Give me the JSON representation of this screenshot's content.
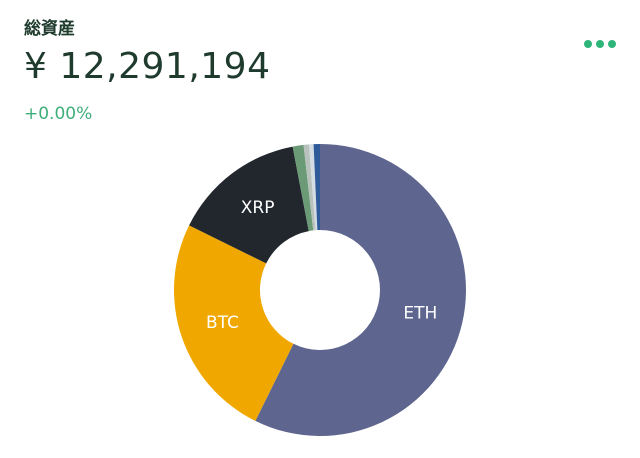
{
  "header": {
    "title": "総資産",
    "total": "¥ 12,291,194",
    "change": "+0.00%"
  },
  "chart_data": {
    "type": "donut",
    "categories": [
      "ETH",
      "BTC",
      "XRP",
      null,
      null,
      null,
      null
    ],
    "values": [
      57.3,
      25.0,
      14.7,
      1.2,
      0.6,
      0.5,
      0.7
    ],
    "colors": [
      "#5e668f",
      "#f0a800",
      "#22272e",
      "#6b9a76",
      "#b8c2bc",
      "#d3dbe3",
      "#2e5a9a"
    ]
  }
}
